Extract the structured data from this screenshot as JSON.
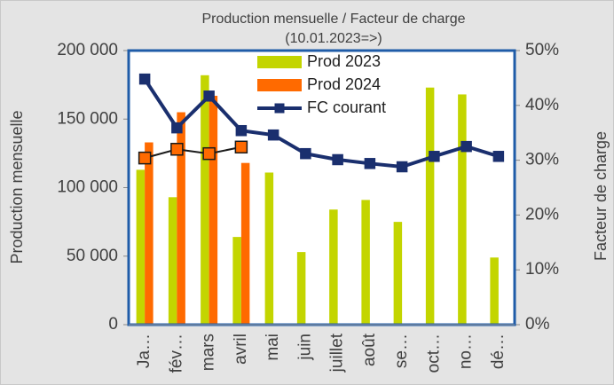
{
  "chart_data": {
    "type": "bar",
    "title": "Production mensuelle / Facteur de charge",
    "subtitle": "(10.01.2023=>)",
    "y_label": "Production mensuelle",
    "y2_label": "Facteur de charge",
    "categories": [
      "Ja…",
      "fév…",
      "mars",
      "avril",
      "mai",
      "juin",
      "juillet",
      "août",
      "se…",
      "oct…",
      "no…",
      "dé…"
    ],
    "series": [
      {
        "name": "Prod 2023",
        "type": "bar",
        "color": "#c3d500",
        "values": [
          113000,
          93000,
          182000,
          64000,
          111000,
          53000,
          84000,
          91000,
          75000,
          173000,
          168000,
          49000
        ]
      },
      {
        "name": "Prod 2024",
        "type": "bar",
        "color": "#ff6a00",
        "values": [
          133000,
          155000,
          167000,
          118000,
          null,
          null,
          null,
          null,
          null,
          null,
          null,
          null
        ]
      },
      {
        "name": "FC courant",
        "type": "line",
        "axis": "y2",
        "color": "#1a2f6e",
        "values": [
          44.8,
          35.9,
          41.7,
          35.4,
          34.6,
          31.2,
          30.1,
          29.4,
          28.8,
          30.7,
          32.5,
          30.7
        ]
      },
      {
        "type": "line",
        "axis": "y2",
        "color": "#ff6a00",
        "values": [
          30.4,
          32.0,
          31.2,
          32.4,
          null,
          null,
          null,
          null,
          null,
          null,
          null,
          null
        ]
      }
    ],
    "ylim": [
      0,
      200000
    ],
    "yticks": [
      0,
      {
        "value": 50000,
        "label": "50 000"
      },
      {
        "value": 100000,
        "label": "100 000"
      },
      {
        "value": 150000,
        "label": "150 000"
      },
      {
        "value": 200000,
        "label": "200 000"
      }
    ],
    "y2lim": [
      0,
      50
    ],
    "y2ticks": [
      {
        "value": 0,
        "label": "0%"
      },
      {
        "value": 10,
        "label": "10%"
      },
      {
        "value": 20,
        "label": "20%"
      },
      {
        "value": 30,
        "label": "30%"
      },
      {
        "value": 40,
        "label": "40%"
      },
      {
        "value": 50,
        "label": "50%"
      }
    ],
    "grid": false,
    "legend": "top"
  }
}
